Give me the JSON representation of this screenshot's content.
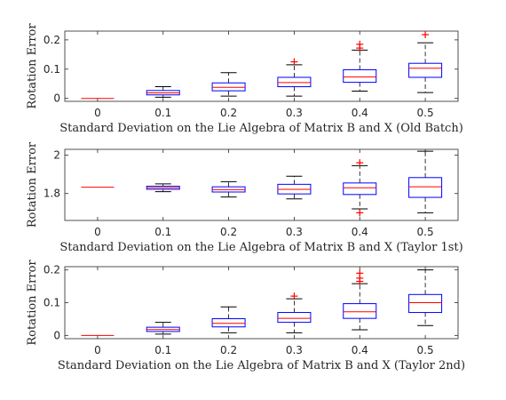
{
  "chart_data": [
    {
      "type": "box",
      "xlabel": "Standard Deviation on the Lie Algebra of Matrix B and X (Old Batch)",
      "ylabel": "Rotation Error",
      "categories": [
        "0",
        "0.1",
        "0.2",
        "0.3",
        "0.4",
        "0.5"
      ],
      "ylim": [
        -0.01,
        0.23
      ],
      "yticks": [
        0,
        0.1,
        0.2
      ],
      "ytick_labels": [
        "0",
        "0.1",
        "0.2"
      ],
      "boxes": [
        {
          "q1": 0.0,
          "median": 0.0,
          "q3": 0.0,
          "whisker_low": 0.0,
          "whisker_high": 0.0,
          "outliers": []
        },
        {
          "q1": 0.012,
          "median": 0.019,
          "q3": 0.027,
          "whisker_low": 0.004,
          "whisker_high": 0.04,
          "outliers": []
        },
        {
          "q1": 0.026,
          "median": 0.038,
          "q3": 0.053,
          "whisker_low": 0.008,
          "whisker_high": 0.088,
          "outliers": []
        },
        {
          "q1": 0.04,
          "median": 0.054,
          "q3": 0.072,
          "whisker_low": 0.008,
          "whisker_high": 0.115,
          "outliers": [
            0.125
          ]
        },
        {
          "q1": 0.055,
          "median": 0.073,
          "q3": 0.098,
          "whisker_low": 0.025,
          "whisker_high": 0.165,
          "outliers": [
            0.172,
            0.185
          ]
        },
        {
          "q1": 0.072,
          "median": 0.103,
          "q3": 0.12,
          "whisker_low": 0.02,
          "whisker_high": 0.19,
          "outliers": [
            0.218
          ]
        }
      ]
    },
    {
      "type": "box",
      "xlabel": "Standard Deviation on the Lie Algebra of Matrix B and X (Taylor 1st)",
      "ylabel": "Rotation Error",
      "categories": [
        "0",
        "0.1",
        "0.2",
        "0.3",
        "0.4",
        "0.5"
      ],
      "ylim": [
        1.66,
        2.03
      ],
      "yticks": [
        1.8,
        2.0
      ],
      "ytick_labels": [
        "1.8",
        "2"
      ],
      "boxes": [
        {
          "q1": 1.833,
          "median": 1.833,
          "q3": 1.833,
          "whisker_low": 1.833,
          "whisker_high": 1.833,
          "outliers": []
        },
        {
          "q1": 1.822,
          "median": 1.83,
          "q3": 1.838,
          "whisker_low": 1.81,
          "whisker_high": 1.85,
          "outliers": []
        },
        {
          "q1": 1.808,
          "median": 1.82,
          "q3": 1.835,
          "whisker_low": 1.782,
          "whisker_high": 1.862,
          "outliers": []
        },
        {
          "q1": 1.798,
          "median": 1.822,
          "q3": 1.848,
          "whisker_low": 1.772,
          "whisker_high": 1.89,
          "outliers": []
        },
        {
          "q1": 1.795,
          "median": 1.83,
          "q3": 1.855,
          "whisker_low": 1.72,
          "whisker_high": 1.945,
          "outliers": [
            1.7,
            1.96
          ]
        },
        {
          "q1": 1.78,
          "median": 1.835,
          "q3": 1.883,
          "whisker_low": 1.7,
          "whisker_high": 2.02,
          "outliers": []
        }
      ]
    },
    {
      "type": "box",
      "xlabel": "Standard Deviation on the Lie Algebra of Matrix B and X (Taylor 2nd)",
      "ylabel": "Rotation Error",
      "categories": [
        "0",
        "0.1",
        "0.2",
        "0.3",
        "0.4",
        "0.5"
      ],
      "ylim": [
        -0.01,
        0.21
      ],
      "yticks": [
        0,
        0.1,
        0.2
      ],
      "ytick_labels": [
        "0",
        "0.1",
        "0.2"
      ],
      "boxes": [
        {
          "q1": 0.0,
          "median": 0.0,
          "q3": 0.0,
          "whisker_low": 0.0,
          "whisker_high": 0.0,
          "outliers": []
        },
        {
          "q1": 0.012,
          "median": 0.018,
          "q3": 0.025,
          "whisker_low": 0.004,
          "whisker_high": 0.04,
          "outliers": []
        },
        {
          "q1": 0.026,
          "median": 0.037,
          "q3": 0.051,
          "whisker_low": 0.008,
          "whisker_high": 0.087,
          "outliers": []
        },
        {
          "q1": 0.04,
          "median": 0.052,
          "q3": 0.07,
          "whisker_low": 0.008,
          "whisker_high": 0.112,
          "outliers": [
            0.12
          ]
        },
        {
          "q1": 0.052,
          "median": 0.072,
          "q3": 0.097,
          "whisker_low": 0.017,
          "whisker_high": 0.158,
          "outliers": [
            0.165,
            0.175,
            0.19
          ]
        },
        {
          "q1": 0.07,
          "median": 0.1,
          "q3": 0.125,
          "whisker_low": 0.03,
          "whisker_high": 0.2,
          "outliers": []
        }
      ]
    }
  ],
  "colors": {
    "box": "#0000ff",
    "median": "#ff0000",
    "outlier": "#ff0000",
    "whisker": "#000000",
    "axes": "#262626"
  }
}
